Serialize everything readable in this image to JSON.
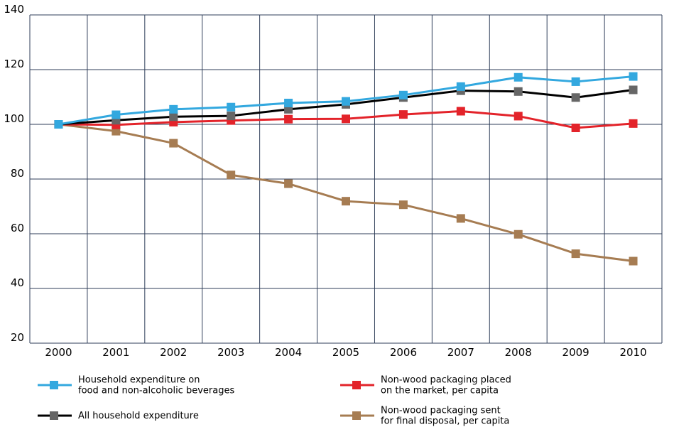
{
  "chart_data": {
    "type": "line",
    "title": "",
    "xlabel": "",
    "ylabel": "",
    "x": [
      "2000",
      "2001",
      "2002",
      "2003",
      "2004",
      "2005",
      "2006",
      "2007",
      "2008",
      "2009",
      "2010"
    ],
    "ylim": [
      20,
      140
    ],
    "yticks": [
      "20",
      "40",
      "60",
      "80",
      "100",
      "120",
      "140"
    ],
    "grid": true,
    "legend_position": "bottom",
    "series": [
      {
        "name_lines": [
          "Household expenditure on",
          "food and non-alcoholic beverages"
        ],
        "color": "#33a8df",
        "marker": "square",
        "values": [
          100,
          103.5,
          105.5,
          106.3,
          107.8,
          108.4,
          110.7,
          113.8,
          117.2,
          115.6,
          117.5
        ]
      },
      {
        "name_lines": [
          "All household expenditure"
        ],
        "color": "#000000",
        "marker_color": "#666666",
        "marker": "square",
        "values": [
          100,
          101.5,
          102.8,
          103.1,
          105.5,
          107.3,
          109.8,
          112.3,
          112.0,
          109.8,
          112.6
        ]
      },
      {
        "name_lines": [
          "Non-wood packaging placed",
          "on the market, per capita"
        ],
        "color": "#e3232a",
        "marker": "square",
        "values": [
          100,
          99.8,
          100.8,
          101.4,
          101.9,
          102.0,
          103.6,
          104.8,
          103.0,
          98.7,
          100.3
        ]
      },
      {
        "name_lines": [
          "Non-wood packaging sent",
          "for final disposal, per capita"
        ],
        "color": "#a67c52",
        "marker": "square",
        "values": [
          100,
          97.5,
          93.1,
          81.5,
          78.3,
          71.9,
          70.6,
          65.6,
          59.8,
          52.7,
          50.0
        ]
      }
    ]
  }
}
